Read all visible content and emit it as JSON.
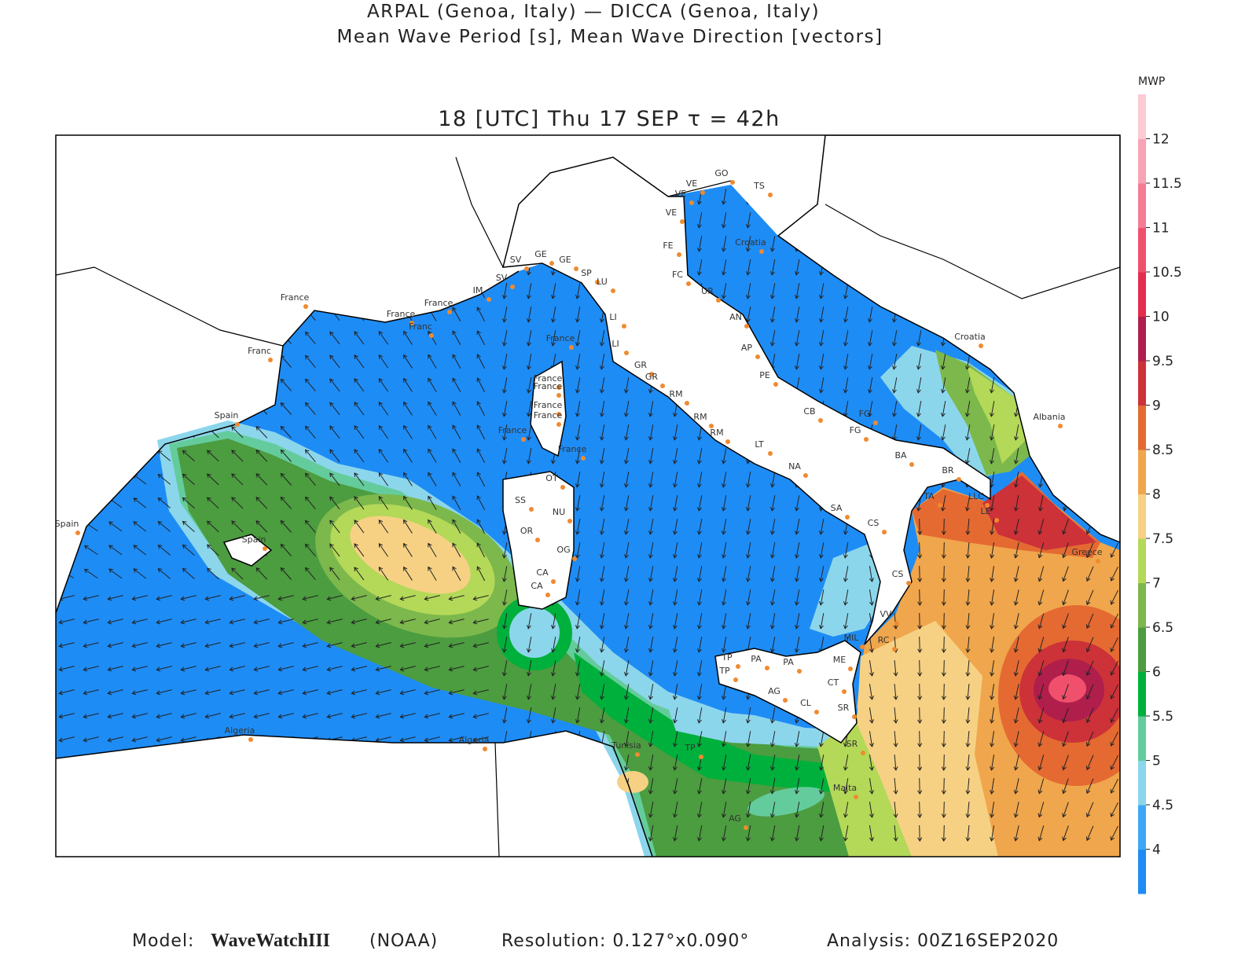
{
  "header": {
    "line1": "ARPAL (Genoa, Italy)  —  DICCA (Genoa, Italy)",
    "line2": "Mean Wave Period [s], Mean Wave Direction [vectors]",
    "time": "18 [UTC] Thu 17 SEP  τ = 42h"
  },
  "colorbar": {
    "label": "MWP",
    "range": [
      3.5,
      12.5
    ],
    "ticks": [
      4,
      4.5,
      5,
      5.5,
      6,
      6.5,
      7,
      7.5,
      8,
      8.5,
      9,
      9.5,
      10,
      10.5,
      11,
      11.5,
      12
    ],
    "colors": [
      "#1e8cf5",
      "#3ca8f5",
      "#8cd6ec",
      "#64cc9c",
      "#00b03c",
      "#4c9c40",
      "#7cb84c",
      "#b4d858",
      "#f6d184",
      "#f0a64c",
      "#e46a32",
      "#cc3238",
      "#b01e4c",
      "#e42c4c",
      "#f0506c",
      "#f47c94",
      "#f8a4b4",
      "#fccad4"
    ]
  },
  "map": {
    "place_labels": [
      "France",
      "France",
      "France",
      "Franc",
      "Franc",
      "Spain",
      "Spain",
      "Spain",
      "IM",
      "SV",
      "GE",
      "GE",
      "SP",
      "LU",
      "SV",
      "LI",
      "France",
      "LI",
      "GR",
      "GR",
      "RM",
      "RM",
      "RM",
      "LT",
      "NA",
      "SA",
      "CS",
      "CS",
      "VV",
      "RC",
      "ME",
      "MIL",
      "CT",
      "SR",
      "SR",
      "France",
      "France",
      "France",
      "France",
      "France",
      "France",
      "OT",
      "SS",
      "NU",
      "OR",
      "OG",
      "CA",
      "CA",
      "VE",
      "VE",
      "VE",
      "GO",
      "TS",
      "Croatia",
      "FE",
      "FC",
      "UR",
      "AN",
      "AP",
      "PE",
      "CB",
      "FG",
      "FG",
      "BA",
      "BR",
      "TA",
      "LLC",
      "LE",
      "Albania",
      "Croatia",
      "Greece",
      "TP",
      "TP",
      "PA",
      "PA",
      "AG",
      "CL",
      "Algeria",
      "Algeria",
      "Tunisia",
      "TP",
      "Malta",
      "AG"
    ]
  },
  "footer": {
    "model_label": "Model:",
    "model": "WaveWatchIII",
    "model_source": "(NOAA)",
    "resolution": "Resolution: 0.127°x0.090°",
    "analysis": "Analysis: 00Z16SEP2020"
  }
}
